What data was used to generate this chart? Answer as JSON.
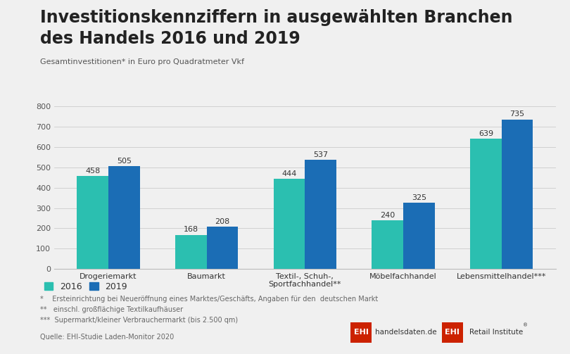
{
  "title_line1": "Investitionskennziffern in ausgewählten Branchen",
  "title_line2": "des Handels 2016 und 2019",
  "subtitle": "Gesamtinvestitionen* in Euro pro Quadratmeter Vkf",
  "categories": [
    "Drogeriemarkt",
    "Baumarkt",
    "Textil-, Schuh-,\nSportfachhandel**",
    "Möbelfachhandel",
    "Lebensmittelhandel***"
  ],
  "values_2016": [
    458,
    168,
    444,
    240,
    639
  ],
  "values_2019": [
    505,
    208,
    537,
    325,
    735
  ],
  "color_2016": "#2bbfb0",
  "color_2019": "#1b6db5",
  "ylim": [
    0,
    800
  ],
  "yticks": [
    0,
    100,
    200,
    300,
    400,
    500,
    600,
    700,
    800
  ],
  "legend_2016": "2016",
  "legend_2019": "2019",
  "footnote1": "*    Ersteinrichtung bei Neueröffnung eines Marktes/Geschäfts, Angaben für den  deutschen Markt",
  "footnote2": "**   einschl. großflächige Textilkaufhäuser",
  "footnote3": "***  Supermarkt/kleiner Verbrauchermarkt (bis 2.500 qm)",
  "source": "Quelle: EHI-Studie Laden-Monitor 2020",
  "background_color": "#f0f0f0",
  "plot_bg": "#f0f0f0",
  "bar_width": 0.32,
  "title_fontsize": 17,
  "subtitle_fontsize": 8,
  "tick_fontsize": 8,
  "label_fontsize": 8,
  "footnote_fontsize": 7,
  "source_fontsize": 7,
  "ehi_color": "#cc2200"
}
